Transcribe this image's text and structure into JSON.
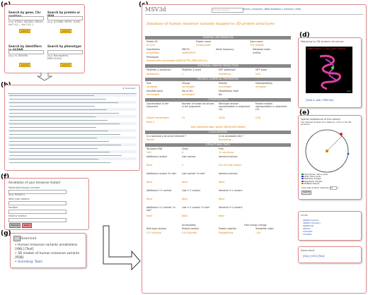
{
  "panels": {
    "a": "(a)",
    "b": "(b)",
    "c": "(c)",
    "d": "(d)",
    "e": "(e)",
    "f": "(f)",
    "g": "(g)"
  },
  "search": {
    "gene": {
      "title": "Search by gene, Chr position",
      "hint": "(e.g. HTRA1, 663342, BRCA1, chr7:12..., chr7:12..)",
      "button": "submit"
    },
    "protein": {
      "title": "Search by protein or PDB",
      "hint": "(e.g. Q13386, MRP4, 1UC8)",
      "button": "submit"
    },
    "dbsnp": {
      "title": "Search by identifiers in dbSNP",
      "hint": "(e.g. rs 160409)",
      "button": "submit"
    },
    "phenotype": {
      "title": "Search by phenotype",
      "hint": "(e.g. Neuropathic, MIM:12345)",
      "button": "submit"
    }
  },
  "results": {
    "download": "download"
  },
  "header": {
    "title": "MSV3d",
    "search_placeholder": "Full text search",
    "nav": "Home | Analysis | Web Statistics | Contact | Help"
  },
  "db_subtitle": "Database of human missense variants mapped to 3D protein structures",
  "sections": {
    "general": "GENERAL INFORMATION",
    "external": "EXTERNAL SERVER PREDICTION",
    "physico": "PHYSICO-CHEMICAL PROPERTIES",
    "conservation": "CONSERVATION",
    "localisation": "LOCALISATION",
    "structural": "STRUCTURAL DATA"
  },
  "general": {
    "col1": "Protein ID",
    "col2": "Protein name",
    "col3": "Gene name",
    "val1": "P11310",
    "val2": "Transthyretin",
    "val3": "TTR_HUMAN",
    "col4": "Substitution",
    "col5": "SNP ID",
    "col6": "Allele frequency",
    "col7": "Database origin",
    "val4": "p.Val50Met",
    "val5": "rs28933979",
    "val6": "-",
    "val7": "UniProt",
    "phenotype_label": "Phenotype",
    "phenotype_value": "Transthyretin amyloidosis (AMYLD/TTR) [MIM:105210]"
  },
  "external": {
    "c1": "PolyPhen-2 prediction",
    "c2": "PolyPhen-2 score",
    "c3": "SIFT prediction",
    "c4": "SIFT score",
    "v1": "deleterious",
    "v2": "1",
    "v3": "deleterious",
    "v4": "0.00"
  },
  "physico": {
    "c1": "Size",
    "c2": "Charge",
    "c3": "Polarity",
    "c4": "Hydrophobicity",
    "v1": "increased",
    "v2": "unchanged",
    "v3": "unchanged",
    "v4": "increased",
    "c5": "Disulfide bond",
    "c6": "Zip or Pro",
    "c7": "Modification Ssite",
    "v5": "unchanged",
    "v6": "unchanged",
    "v7": "NA"
  },
  "conservation": {
    "c1": "Conservation in the alignment",
    "c2": "Number of known structures in the alignment",
    "c3": "Wild type residue representation in alignment (%)",
    "c4": "Mutant residue representation in alignment (%)",
    "v1": "Global conservation",
    "v2": "13",
    "v3": "26.82",
    "v4": "0.58",
    "v5": "Rank 2",
    "link": "View alignment data / genes: BRCA/0000 Details"
  },
  "localisation": {
    "c1": "In a secondary structure element ?",
    "c2": "In an annotated site ?",
    "v1": "Strand",
    "v2": "No binding, ..."
  },
  "structural": {
    "c1": "Template PDB",
    "c2": "Chain",
    "c3": "Free",
    "v1": "1f41",
    "v2": "A",
    "v3": "12 structures",
    "rows": [
      {
        "a": "Additional contact",
        "b": "Lost contact",
        "c": "Identical contact"
      },
      {
        "a": "None",
        "b": "0",
        "c": "GLU 54 new contact"
      },
      {
        "a": "Additional contact \"in site\"",
        "b": "Lost contact \"in site\"",
        "c": "Identical contact"
      },
      {
        "a": "None",
        "b": "None",
        "c": "None"
      },
      {
        "a": "Additional i+1 contact",
        "b": "Lost i+1 contact",
        "c": "Identical i+1 contact"
      },
      {
        "a": "None",
        "b": "None",
        "c": "None"
      },
      {
        "a": "Additional i+1 contact \"in site\"",
        "b": "Lost i+1 contact \"in site\"",
        "c": "Identical i+1 contact"
      },
      {
        "a": "None",
        "b": "None",
        "c": "None"
      }
    ],
    "acc": "Accessibility",
    "ene": "Free energy change",
    "h1": "Wild type residue",
    "h2": "Mutant residue",
    "h3": "Protein stability",
    "h4": "Variability index",
    "f1": "0.37 (Buried)",
    "f2": "0.40 (Buried)",
    "f3": "Destabilizing",
    "f4": "1.00"
  },
  "structure_panel": {
    "title": "Mapping to 3D protein structure",
    "caption": "V50M mutation on the protein P11310",
    "jmol": "Jmol",
    "view_link": "[View in pdb / PDB file]"
  },
  "sphere_panel": {
    "title": "Spatial neighbours of the variant",
    "desc": "The residues located at a distance <10 Å in the 3D structure",
    "legend": [
      "Hydrophobic amino acids",
      "Polar amino acids",
      "Positively charged",
      "Negatively charged",
      "Mutated residue"
    ],
    "legend_colors": [
      "#2a7a2a",
      "#333399",
      "#1e5fd6",
      "#d02020",
      "#e07b00"
    ],
    "view_label": "View with another diameter",
    "diameter": "10",
    "unit": "Å",
    "submit": "Submit"
  },
  "links_panel": {
    "title": "Links",
    "items": [
      "SM2PH Central",
      "SM2PH (Human)",
      "SM2PH-db",
      "MSV3d",
      "TTR-RGD",
      "TTR-Wiki"
    ]
  },
  "download_small": {
    "title": "Download",
    "items": "[SQL] [CSV] [Text]"
  },
  "annotation": {
    "title": "Annotation of your missense mutant",
    "f1": "Mutant/Accession number",
    "f1_hint": "(e.g. P01007)",
    "f2": "Wild type residue",
    "f3": "Position",
    "f4": "Mutant residue",
    "b1": "Validate",
    "b2": "Reset"
  },
  "download_panel": {
    "title": "Download",
    "items": [
      "Human missense variants annotations [XML] [Text]",
      "3D models of human missense variants [PDB]",
      "Unending: Tools"
    ]
  }
}
